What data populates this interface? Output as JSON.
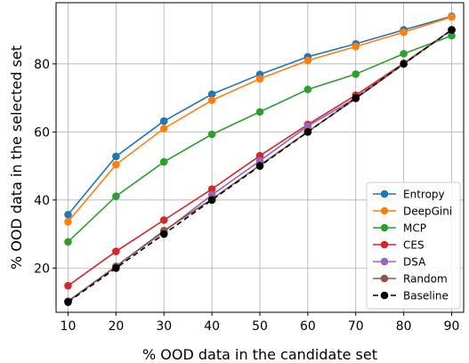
{
  "chart_data": {
    "type": "line",
    "xlabel": "% OOD data in the candidate set",
    "ylabel": "% OOD data in the selected set",
    "x": [
      10,
      20,
      30,
      40,
      50,
      60,
      70,
      80,
      90
    ],
    "x_ticks": [
      "10",
      "20",
      "30",
      "40",
      "50",
      "60",
      "70",
      "80",
      "90"
    ],
    "y_ticks": [
      "20",
      "40",
      "60",
      "80"
    ],
    "xlim": [
      7.5,
      92.5
    ],
    "ylim": [
      7,
      98
    ],
    "grid": true,
    "legend_position": "bottom-right",
    "series": [
      {
        "name": "Entropy",
        "color": "#1f77b4",
        "dashed": false,
        "values": [
          35.7,
          52.8,
          63.2,
          71.1,
          76.9,
          82.1,
          85.9,
          90.0,
          94.0
        ]
      },
      {
        "name": "DeepGini",
        "color": "#ff7f0e",
        "dashed": false,
        "values": [
          33.6,
          50.4,
          61.0,
          69.3,
          75.6,
          81.0,
          85.1,
          89.3,
          93.8
        ]
      },
      {
        "name": "MCP",
        "color": "#2ca02c",
        "dashed": false,
        "values": [
          27.7,
          41.1,
          51.2,
          59.3,
          65.9,
          72.5,
          77.0,
          83.0,
          88.3
        ]
      },
      {
        "name": "CES",
        "color": "#d62728",
        "dashed": false,
        "values": [
          14.8,
          24.9,
          34.1,
          43.2,
          53.0,
          62.2,
          70.8,
          80.2,
          90.0
        ]
      },
      {
        "name": "DSA",
        "color": "#9467bd",
        "dashed": false,
        "values": [
          10.3,
          20.5,
          30.7,
          41.5,
          51.5,
          61.7,
          70.0,
          80.0,
          90.0
        ]
      },
      {
        "name": "Random",
        "color": "#8c564b",
        "dashed": false,
        "values": [
          10.2,
          20.5,
          31.0,
          40.3,
          50.2,
          60.1,
          69.8,
          80.0,
          90.0
        ]
      },
      {
        "name": "Baseline",
        "color": "#000000",
        "dashed": true,
        "values": [
          10,
          20,
          30,
          40,
          50,
          60,
          70,
          80,
          90
        ]
      }
    ]
  }
}
